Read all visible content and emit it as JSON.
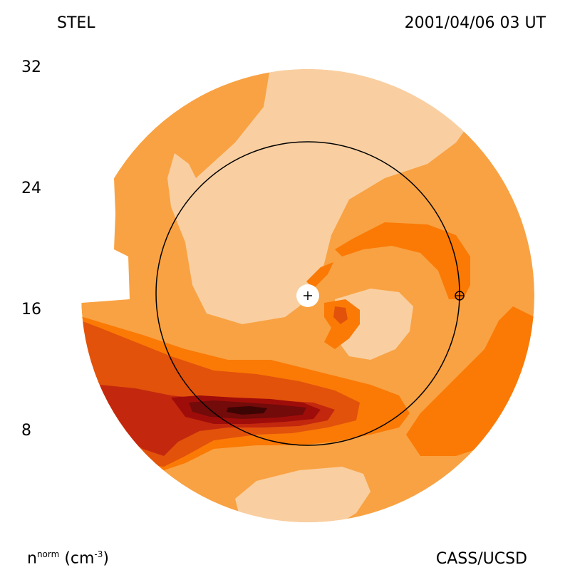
{
  "header": {
    "source_label": "STEL",
    "timestamp": "2001/04/06 03 UT"
  },
  "footer": {
    "quantity_label_main": "n",
    "quantity_label_sup": "norm",
    "quantity_unit": "(cm",
    "quantity_unit_sup": "-3",
    "quantity_unit_close": ")",
    "credit": "CASS/UCSD"
  },
  "colorbar": {
    "ticks": [
      "32",
      "24",
      "16",
      "8"
    ],
    "colors": [
      "#f9cfa1",
      "#f9a243",
      "#fa7a05",
      "#e2520b",
      "#c3280e",
      "#9f0d0a",
      "#720b09",
      "#3d0404"
    ]
  },
  "plot": {
    "sun_marker": "+",
    "earth_marker": "⊕"
  }
}
